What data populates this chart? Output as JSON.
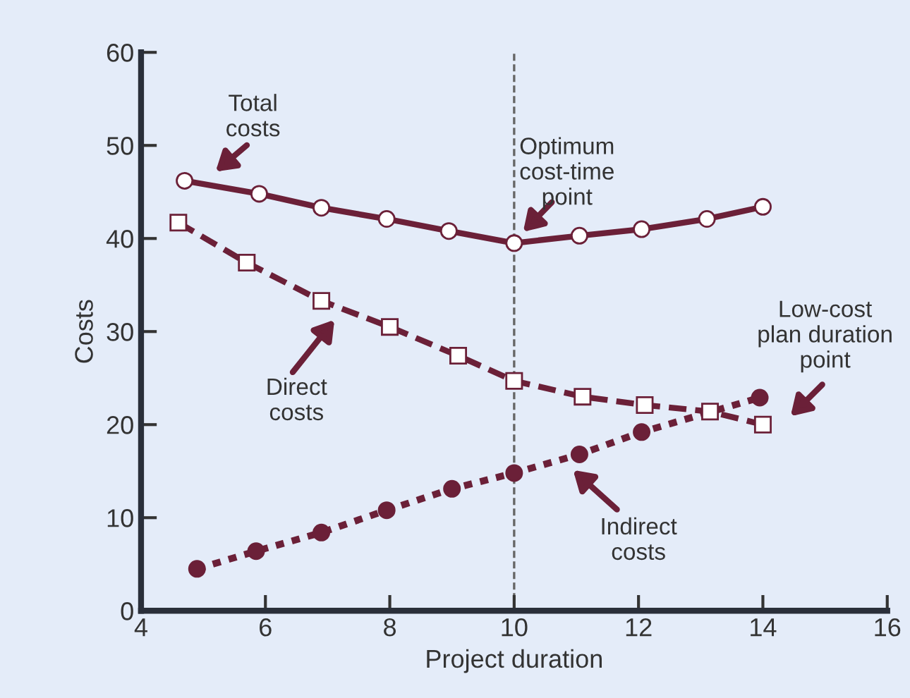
{
  "chart_data": {
    "type": "line",
    "xlabel": "Project duration",
    "ylabel": "Costs",
    "xlim": [
      4,
      16
    ],
    "xticks": [
      4,
      6,
      8,
      10,
      12,
      14,
      16
    ],
    "ylim": [
      0,
      60
    ],
    "yticks": [
      0,
      10,
      20,
      30,
      40,
      50,
      60
    ],
    "grid": false,
    "series": [
      {
        "color": "#6b2038",
        "line_style": "solid",
        "marker": "circle",
        "x": [
          4.7,
          5.9,
          6.9,
          7.95,
          8.95,
          10,
          11.05,
          12.05,
          13.1,
          14
        ],
        "values": [
          46.2,
          44.8,
          43.3,
          42.1,
          40.8,
          39.5,
          40.3,
          41,
          42.1,
          43.4
        ]
      },
      {
        "color": "#6b2038",
        "line_style": "dashed",
        "marker": "square",
        "x": [
          4.6,
          5.7,
          6.9,
          8,
          9.1,
          10,
          11.1,
          12.1,
          13.15,
          14
        ],
        "values": [
          41.7,
          37.4,
          33.3,
          30.5,
          27.4,
          24.7,
          23,
          22.1,
          21.4,
          20
        ]
      },
      {
        "color": "#6b2038",
        "line_style": "dotted",
        "marker": "circle",
        "x": [
          4.9,
          5.85,
          6.9,
          7.95,
          9,
          10,
          11.05,
          12.05,
          13.95
        ],
        "values": [
          4.5,
          6.4,
          8.4,
          10.8,
          13.1,
          14.8,
          16.8,
          19.2,
          22.9
        ]
      }
    ],
    "ref_lines": [
      {
        "axis": "x",
        "value": 10,
        "color": "#666666",
        "line_style": "dashed"
      }
    ],
    "annotations": [
      "Total\ncosts",
      "Optimum\ncost-time\npoint",
      "Direct\ncosts",
      "Indirect\ncosts",
      "Low-cost\nplan duration\npoint"
    ]
  }
}
